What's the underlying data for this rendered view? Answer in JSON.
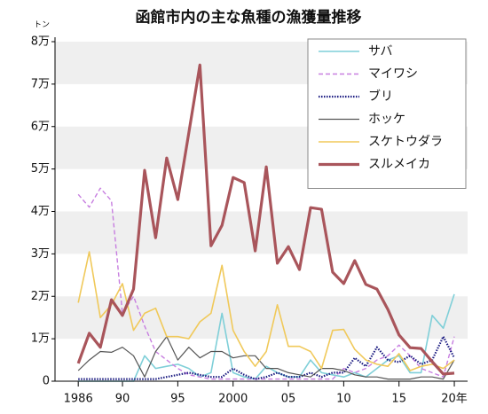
{
  "chart_data": {
    "type": "line",
    "title": "函館市内の主な魚種の漁獲量推移",
    "y_unit": "トン",
    "x": [
      1986,
      1987,
      1988,
      1989,
      1990,
      1991,
      1992,
      1993,
      1994,
      1995,
      1996,
      1997,
      1998,
      1999,
      2000,
      2001,
      2002,
      2003,
      2004,
      2005,
      2006,
      2007,
      2008,
      2009,
      2010,
      2011,
      2012,
      2013,
      2014,
      2015,
      2016,
      2017,
      2018,
      2019,
      2020
    ],
    "xlim": [
      1983.9,
      2021.2
    ],
    "xticks": [
      1986,
      {
        "value": 1990,
        "label": "90"
      },
      {
        "value": 1995,
        "label": "95"
      },
      2000,
      {
        "value": 2005,
        "label": "05"
      },
      {
        "value": 2010,
        "label": "10"
      },
      {
        "value": 2015,
        "label": "15"
      },
      {
        "value": 2020,
        "label": "20年"
      }
    ],
    "ylim": [
      0,
      80000
    ],
    "yticks": [
      0,
      {
        "value": 10000,
        "label": "1万"
      },
      {
        "value": 20000,
        "label": "2万"
      },
      {
        "value": 30000,
        "label": "3万"
      },
      {
        "value": 40000,
        "label": "4万"
      },
      {
        "value": 50000,
        "label": "5万"
      },
      {
        "value": 60000,
        "label": "6万"
      },
      {
        "value": 70000,
        "label": "7万"
      },
      {
        "value": 80000,
        "label": "8万"
      }
    ],
    "grid": "bands",
    "legend": "upper right",
    "series": [
      {
        "name": "サバ",
        "color": "#7fcfd8",
        "style": "solid",
        "line_width": 1.6,
        "values": [
          0,
          0,
          0,
          0,
          0,
          0,
          6000,
          3000,
          3500,
          4000,
          3000,
          1000,
          2000,
          16000,
          2000,
          1000,
          500,
          3500,
          2000,
          1000,
          1000,
          5000,
          2000,
          1500,
          1000,
          2000,
          1000,
          3000,
          5000,
          6000,
          2000,
          2000,
          15500,
          12500,
          20500
        ]
      },
      {
        "name": "マイワシ",
        "color": "#c77ee0",
        "style": "dashed",
        "line_width": 1.4,
        "values": [
          44000,
          41000,
          45500,
          42500,
          16000,
          20000,
          13000,
          7000,
          5000,
          3000,
          1500,
          1000,
          500,
          500,
          500,
          500,
          500,
          500,
          500,
          500,
          500,
          500,
          500,
          500,
          3000,
          2000,
          3000,
          5000,
          6000,
          8500,
          6000,
          3000,
          2000,
          1000,
          10500
        ]
      },
      {
        "name": "ブリ",
        "color": "#1a1a80",
        "style": "dotted",
        "line_width": 2.2,
        "values": [
          500,
          500,
          500,
          500,
          500,
          500,
          500,
          500,
          1000,
          1500,
          2000,
          1500,
          1000,
          1000,
          3000,
          1500,
          500,
          1000,
          2000,
          1000,
          1000,
          2000,
          1000,
          2000,
          2000,
          5500,
          3500,
          8000,
          5000,
          4500,
          6000,
          4000,
          5000,
          10500,
          5500
        ]
      },
      {
        "name": "ホッケ",
        "color": "#555555",
        "style": "solid",
        "line_width": 1.2,
        "values": [
          2500,
          5000,
          7000,
          6800,
          8000,
          6000,
          1000,
          7000,
          10500,
          5000,
          8000,
          5500,
          7000,
          7000,
          5500,
          6000,
          6000,
          3000,
          3000,
          2000,
          1500,
          1000,
          3000,
          3000,
          2500,
          1500,
          1000,
          1000,
          500,
          500,
          500,
          1000,
          1000,
          500,
          5000
        ]
      },
      {
        "name": "スケトウダラ",
        "color": "#f0c95a",
        "style": "solid",
        "line_width": 1.6,
        "values": [
          18500,
          30500,
          15000,
          18000,
          23000,
          12000,
          16000,
          17200,
          10500,
          10500,
          10000,
          14000,
          16000,
          27300,
          12000,
          7000,
          3500,
          7000,
          18000,
          8200,
          8200,
          7000,
          3000,
          12000,
          12200,
          7500,
          5000,
          4000,
          3500,
          6500,
          2500,
          3500,
          4000,
          3000,
          5000
        ]
      },
      {
        "name": "スルメイカ",
        "color": "#a9555b",
        "style": "solid",
        "line_width": 3.2,
        "values": [
          4200,
          11300,
          8000,
          19200,
          15500,
          21700,
          49700,
          33800,
          52600,
          42800,
          58500,
          74500,
          31900,
          36700,
          48000,
          46800,
          30700,
          50500,
          27800,
          31700,
          26300,
          40900,
          40500,
          25700,
          23000,
          28400,
          22800,
          21700,
          16900,
          10900,
          7900,
          7700,
          4600,
          1700,
          1900
        ]
      }
    ]
  }
}
